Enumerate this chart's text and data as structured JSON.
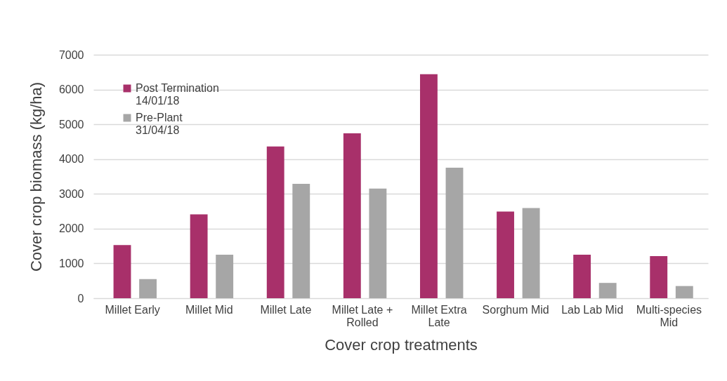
{
  "chart_data": {
    "type": "bar",
    "xlabel": "Cover crop treatments",
    "ylabel": "Cover crop biomass (kg/ha)",
    "categories": [
      "Millet Early",
      "Millet Mid",
      "Millet Late",
      "Millet Late + Rolled",
      "Millet Extra Late",
      "Sorghum Mid",
      "Lab Lab Mid",
      "Multi-species Mid"
    ],
    "series": [
      {
        "name": "Post Termination 14/01/18",
        "color": "#a8306a",
        "values": [
          1530,
          2410,
          4360,
          4740,
          6440,
          2490,
          1250,
          1210
        ]
      },
      {
        "name": "Pre-Plant 31/04/18",
        "color": "#a6a6a6",
        "values": [
          550,
          1250,
          3290,
          3150,
          3750,
          2590,
          440,
          350
        ]
      }
    ],
    "ylim": [
      0,
      7000
    ],
    "yticks": [
      0,
      1000,
      2000,
      3000,
      4000,
      5000,
      6000,
      7000
    ],
    "grid": "y",
    "legend": "top left"
  }
}
